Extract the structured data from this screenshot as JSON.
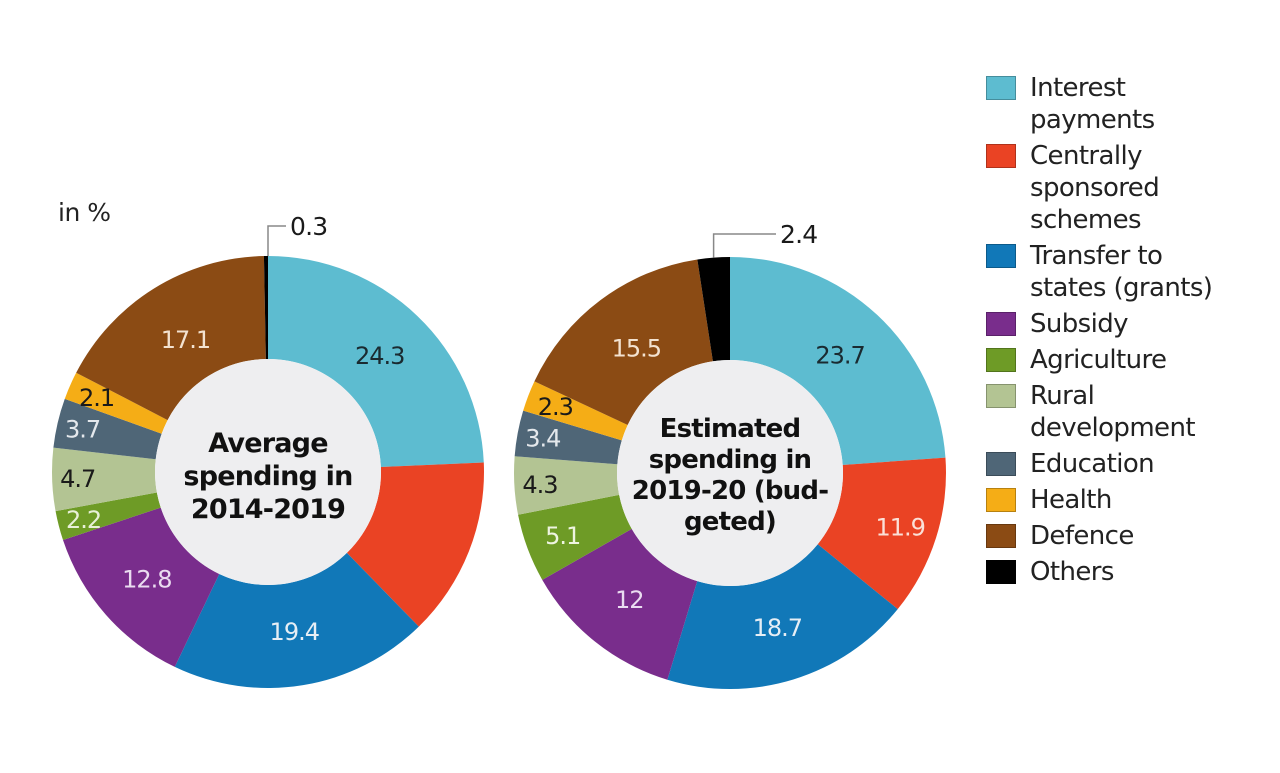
{
  "unit_label": "in %",
  "colors": {
    "interest": "#5dbcd0",
    "css": "#ea4324",
    "transfer": "#1178b8",
    "subsidy": "#792d8c",
    "agriculture": "#6e9b26",
    "rural": "#b3c493",
    "education": "#4f6677",
    "health": "#f5ad16",
    "defence": "#8b4b14",
    "others": "#000000",
    "center_fill": "#eeeef0"
  },
  "legend": [
    {
      "key": "interest",
      "label": "Interest\npayments"
    },
    {
      "key": "css",
      "label": "Centrally\nsponsored\nschemes"
    },
    {
      "key": "transfer",
      "label": "Transfer to\nstates (grants)"
    },
    {
      "key": "subsidy",
      "label": "Subsidy"
    },
    {
      "key": "agriculture",
      "label": "Agriculture"
    },
    {
      "key": "rural",
      "label": "Rural\ndevelopment"
    },
    {
      "key": "education",
      "label": "Education"
    },
    {
      "key": "health",
      "label": "Health"
    },
    {
      "key": "defence",
      "label": "Defence"
    },
    {
      "key": "others",
      "label": "Others"
    }
  ],
  "chart_data": [
    {
      "type": "pie",
      "variant": "donut",
      "title": "Average spending in 2014-2019",
      "center_text": [
        "Average",
        "spending in",
        "2014-2019"
      ],
      "unit": "%",
      "categories": [
        "Interest payments",
        "Centrally sponsored schemes",
        "Transfer to states (grants)",
        "Subsidy",
        "Agriculture",
        "Rural development",
        "Education",
        "Health",
        "Defence",
        "Others"
      ],
      "keys": [
        "interest",
        "css",
        "transfer",
        "subsidy",
        "agriculture",
        "rural",
        "education",
        "health",
        "defence",
        "others"
      ],
      "values": [
        24.3,
        13.4,
        19.4,
        12.8,
        2.2,
        4.7,
        3.7,
        2.1,
        17.1,
        0.3
      ],
      "labels": [
        "24.3",
        "",
        "19.4",
        "12.8",
        "2.2",
        "4.7",
        "3.7",
        "2.1",
        "17.1",
        "0.3"
      ],
      "label_colors": [
        "#1a2a30",
        "#ffffff",
        "#e6eef5",
        "#eadcf0",
        "#e8f0d8",
        "#1a1a1a",
        "#e4e8ec",
        "#1a1a1a",
        "#f3e2d0",
        "#1a1a1a"
      ],
      "callout_index": 9,
      "legend_position": "right"
    },
    {
      "type": "pie",
      "variant": "donut",
      "title": "Estimated spending in 2019-20 (budgeted)",
      "center_text": [
        "Estimated",
        "spending in",
        "2019-20 (bud-",
        "geted)"
      ],
      "unit": "%",
      "categories": [
        "Interest payments",
        "Centrally sponsored schemes",
        "Transfer to states (grants)",
        "Subsidy",
        "Agriculture",
        "Rural development",
        "Education",
        "Health",
        "Defence",
        "Others"
      ],
      "keys": [
        "interest",
        "css",
        "transfer",
        "subsidy",
        "agriculture",
        "rural",
        "education",
        "health",
        "defence",
        "others"
      ],
      "values": [
        23.7,
        11.9,
        18.7,
        12,
        5.1,
        4.3,
        3.4,
        2.3,
        15.5,
        2.4
      ],
      "labels": [
        "23.7",
        "11.9",
        "18.7",
        "12",
        "5.1",
        "4.3",
        "3.4",
        "2.3",
        "15.5",
        "2.4"
      ],
      "label_colors": [
        "#1a2a30",
        "#fbe0d8",
        "#e6eef5",
        "#eadcf0",
        "#eef4e0",
        "#1a1a1a",
        "#e4e8ec",
        "#1a1a1a",
        "#f3e2d0",
        "#1a1a1a"
      ],
      "callout_index": 9,
      "legend_position": "right"
    }
  ]
}
